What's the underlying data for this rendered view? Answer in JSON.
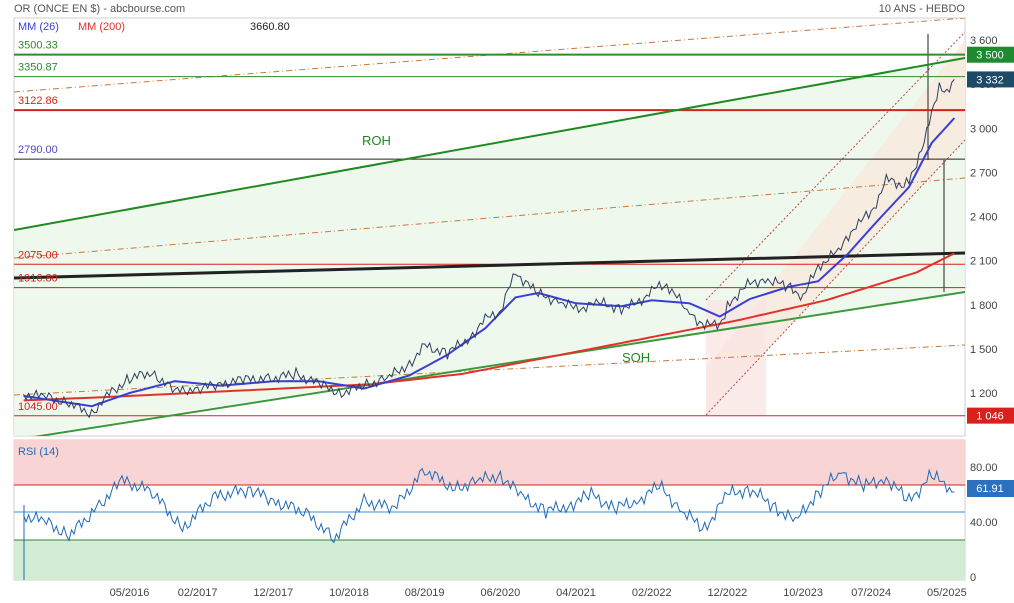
{
  "header": {
    "title": "OR (ONCE EN $) - abcbourse.com",
    "period": "10 ANS - HEBDO",
    "ma_fast_label": "MM (26)",
    "ma_slow_label": "MM (200)",
    "top_level_label": "3660.80"
  },
  "colors": {
    "price": "#2f3f5f",
    "ma_fast": "#3a3fd6",
    "ma_slow": "#e0322b",
    "green_line": "#2e8b2e",
    "fib_dash": "#c8773a",
    "rsi_line": "#1f6bb5",
    "rsi_overbought_fill": "#f9d4d4",
    "rsi_oversold_fill": "#d2ecd6",
    "tag_green": "#1e8a2e",
    "tag_navy": "#1d4a66",
    "tag_red": "#d8201c",
    "tag_blue": "#2b6fbf"
  },
  "levels": [
    {
      "label": "3500.33",
      "value": 3500.33,
      "color": "#2e8b2e"
    },
    {
      "label": "3350.87",
      "value": 3350.87,
      "color": "#2e8b2e"
    },
    {
      "label": "3122.86",
      "value": 3122.86,
      "color": "#d8201c"
    },
    {
      "label": "2790.00",
      "value": 2790.0,
      "color": "#4a4ad0"
    },
    {
      "label": "2075.00",
      "value": 2075.0,
      "color": "#d8201c"
    },
    {
      "label": "1916.80",
      "value": 1916.8,
      "color": "#d8201c"
    },
    {
      "label": "1045.00",
      "value": 1045.0,
      "color": "#d8201c"
    }
  ],
  "annotations": {
    "upper_channel": "ROH",
    "lower_channel": "SOH"
  },
  "price_tags": [
    {
      "text": "3 500",
      "value": 3500,
      "color": "#1e8a2e"
    },
    {
      "text": "3 332",
      "value": 3332,
      "color": "#1d4a66"
    },
    {
      "text": "1 046",
      "value": 1046,
      "color": "#d8201c"
    }
  ],
  "rsi": {
    "label": "RSI (14)",
    "tag_text": "61.91",
    "value": 61.91,
    "ticks": [
      "80.00",
      "40.00",
      "0"
    ]
  },
  "chart_data": {
    "type": "line",
    "title": "OR (ONCE EN $) - abcbourse.com",
    "y_ticks": [
      "3 600",
      "3 300",
      "3 000",
      "2 700",
      "2 400",
      "2 100",
      "1 800",
      "1 500",
      "1 200"
    ],
    "ylim": [
      1000,
      3650
    ],
    "x_ticks": [
      "05/2016",
      "02/2017",
      "12/2017",
      "10/2018",
      "08/2019",
      "06/2020",
      "04/2021",
      "02/2022",
      "12/2022",
      "10/2023",
      "07/2024",
      "05/2025"
    ],
    "x_range": [
      "02/2015",
      "06/2025"
    ],
    "series": [
      {
        "name": "price",
        "x": [
          "03/2015",
          "06/2015",
          "09/2015",
          "12/2015",
          "02/2016",
          "05/2016",
          "08/2016",
          "11/2016",
          "02/2017",
          "05/2017",
          "08/2017",
          "12/2017",
          "03/2018",
          "06/2018",
          "09/2018",
          "12/2018",
          "03/2019",
          "06/2019",
          "08/2019",
          "11/2019",
          "02/2020",
          "04/2020",
          "06/2020",
          "08/2020",
          "11/2020",
          "02/2021",
          "04/2021",
          "07/2021",
          "10/2021",
          "12/2021",
          "02/2022",
          "04/2022",
          "07/2022",
          "09/2022",
          "11/2022",
          "12/2022",
          "02/2023",
          "05/2023",
          "08/2023",
          "10/2023",
          "12/2023",
          "03/2024",
          "05/2024",
          "07/2024",
          "09/2024",
          "11/2024",
          "12/2024",
          "02/2025",
          "04/2025",
          "05/2025",
          "06/2025"
        ],
        "values": [
          1190,
          1175,
          1130,
          1060,
          1180,
          1300,
          1340,
          1210,
          1230,
          1260,
          1290,
          1300,
          1330,
          1260,
          1200,
          1250,
          1300,
          1400,
          1520,
          1470,
          1580,
          1700,
          1760,
          2020,
          1870,
          1820,
          1770,
          1810,
          1780,
          1800,
          1900,
          1940,
          1740,
          1660,
          1670,
          1780,
          1920,
          1980,
          1920,
          1860,
          2060,
          2180,
          2350,
          2420,
          2650,
          2620,
          2640,
          2900,
          3300,
          3240,
          3332
        ]
      },
      {
        "name": "MM (26)",
        "x": [
          "03/2015",
          "12/2015",
          "05/2016",
          "11/2016",
          "05/2017",
          "12/2017",
          "06/2018",
          "12/2018",
          "06/2019",
          "11/2019",
          "04/2020",
          "08/2020",
          "11/2020",
          "04/2021",
          "10/2021",
          "02/2022",
          "07/2022",
          "11/2022",
          "03/2023",
          "08/2023",
          "12/2023",
          "04/2024",
          "08/2024",
          "12/2024",
          "03/2025",
          "06/2025"
        ],
        "values": [
          1180,
          1110,
          1200,
          1280,
          1250,
          1280,
          1280,
          1230,
          1320,
          1460,
          1640,
          1850,
          1880,
          1810,
          1790,
          1830,
          1810,
          1720,
          1840,
          1920,
          1960,
          2150,
          2380,
          2600,
          2900,
          3070
        ]
      },
      {
        "name": "MM (200)",
        "x": [
          "03/2015",
          "01/2016",
          "01/2017",
          "01/2018",
          "01/2019",
          "01/2020",
          "01/2021",
          "01/2022",
          "01/2023",
          "01/2024",
          "01/2025",
          "06/2025"
        ],
        "values": [
          1150,
          1170,
          1200,
          1230,
          1260,
          1330,
          1450,
          1570,
          1690,
          1830,
          2020,
          2150
        ]
      },
      {
        "name": "RSI (14)",
        "x": [
          "03/2015",
          "06/2015",
          "09/2015",
          "01/2016",
          "04/2016",
          "08/2016",
          "12/2016",
          "04/2017",
          "09/2017",
          "12/2017",
          "04/2018",
          "08/2018",
          "12/2018",
          "04/2019",
          "08/2019",
          "12/2019",
          "03/2020",
          "06/2020",
          "09/2020",
          "12/2020",
          "03/2021",
          "06/2021",
          "09/2021",
          "12/2021",
          "03/2022",
          "06/2022",
          "09/2022",
          "12/2022",
          "03/2023",
          "06/2023",
          "09/2023",
          "12/2023",
          "03/2024",
          "06/2024",
          "09/2024",
          "12/2024",
          "03/2025",
          "05/2025",
          "06/2025"
        ],
        "values": [
          45,
          40,
          30,
          52,
          70,
          62,
          35,
          58,
          64,
          55,
          48,
          28,
          55,
          50,
          78,
          64,
          70,
          74,
          58,
          48,
          52,
          60,
          50,
          55,
          66,
          48,
          35,
          60,
          64,
          52,
          40,
          62,
          76,
          66,
          72,
          55,
          74,
          66,
          61.91
        ]
      }
    ]
  }
}
